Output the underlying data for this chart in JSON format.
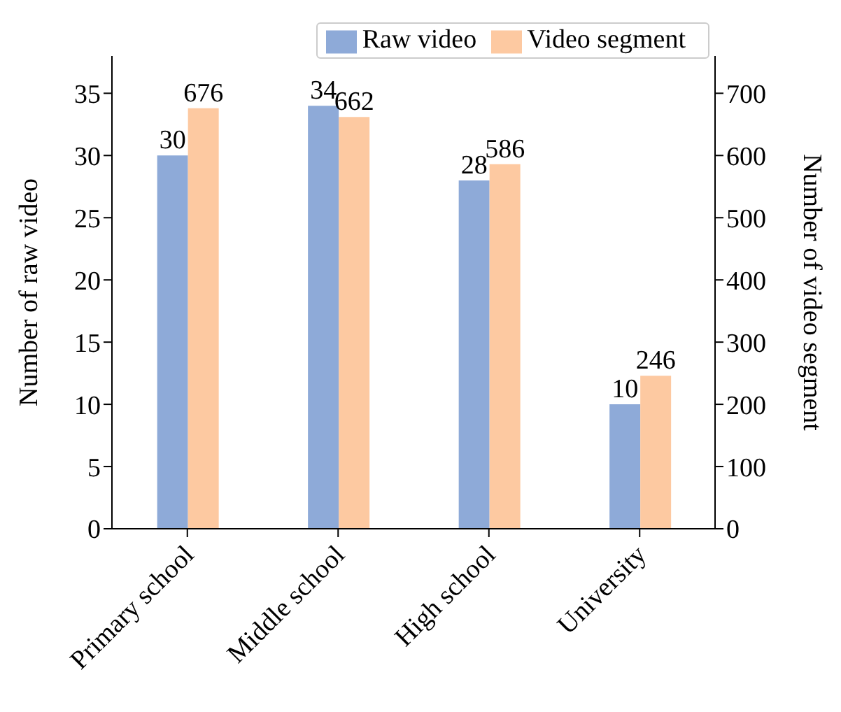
{
  "chart_data": {
    "type": "bar",
    "categories": [
      "Primary school",
      "Middle school",
      "High school",
      "University"
    ],
    "series": [
      {
        "name": "Raw video",
        "color": "#8eaad8",
        "values": [
          30,
          34,
          28,
          10
        ]
      },
      {
        "name": "Video segment",
        "color": "#fdc9a1",
        "values": [
          676,
          662,
          586,
          246
        ],
        "axis": "y2"
      }
    ],
    "ylabel": "Number of raw video",
    "y2label": "Number of video segment",
    "ylim": [
      0,
      38
    ],
    "yticks": [
      0,
      5,
      10,
      15,
      20,
      25,
      30,
      35
    ],
    "y2lim": [
      0,
      760
    ],
    "y2ticks": [
      0,
      100,
      200,
      300,
      400,
      500,
      600,
      700
    ],
    "data_labels": true,
    "legend": "top right",
    "grid": false
  }
}
